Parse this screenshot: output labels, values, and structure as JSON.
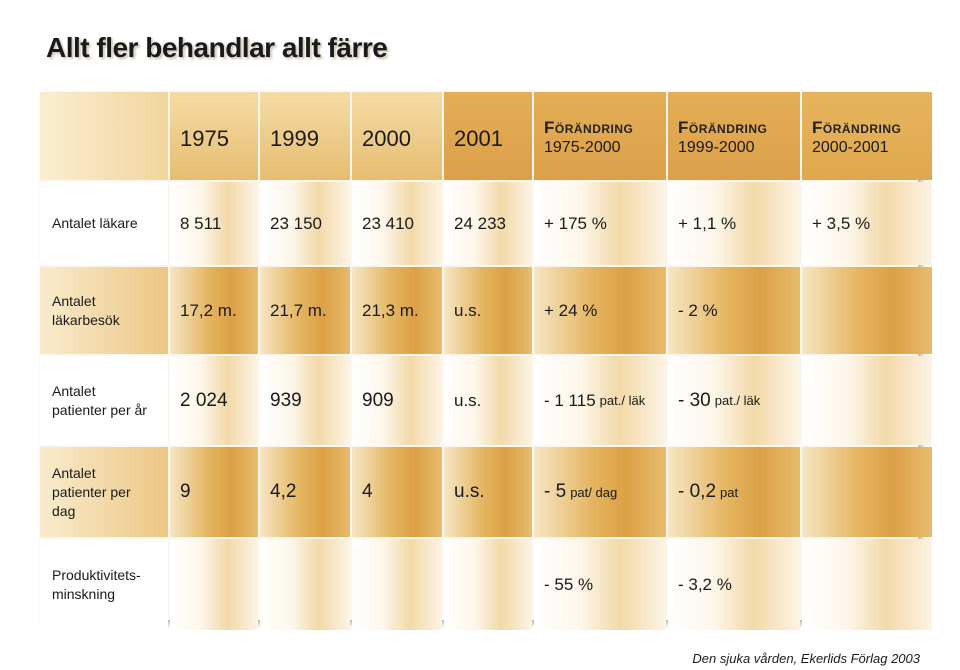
{
  "title": "Allt fler behandlar allt färre",
  "table": {
    "headers": {
      "years": [
        "1975",
        "1999",
        "2000",
        "2001"
      ],
      "changes": [
        {
          "label": "Förändring",
          "range": "1975-2000"
        },
        {
          "label": "Förändring",
          "range": "1999-2000"
        },
        {
          "label": "Förändring",
          "range": "2000-2001"
        }
      ]
    },
    "rows": [
      {
        "label_line1": "Antalet läkare",
        "label_line2": "",
        "label_line3": "",
        "values": [
          "8 511",
          "23 150",
          "23 410",
          "24 233"
        ],
        "changes": [
          {
            "v": "+ 175 %",
            "u": ""
          },
          {
            "v": "+ 1,1 %",
            "u": ""
          },
          {
            "v": "+ 3,5 %",
            "u": ""
          }
        ]
      },
      {
        "label_line1": "Antalet",
        "label_line2": "läkarbesök",
        "label_line3": "",
        "values": [
          "17,2 m.",
          "21,7 m.",
          "21,3 m.",
          "u.s."
        ],
        "changes": [
          {
            "v": "+ 24 %",
            "u": ""
          },
          {
            "v": "- 2 %",
            "u": ""
          },
          {
            "v": "",
            "u": ""
          }
        ]
      },
      {
        "label_line1": "Antalet",
        "label_line2": "patienter per år",
        "label_line3": "",
        "values": [
          "2 024",
          "939",
          "909",
          "u.s."
        ],
        "changes": [
          {
            "v": "- 1 115",
            "u": "pat./ läk"
          },
          {
            "v": "- 30",
            "u": "pat./ läk"
          },
          {
            "v": "",
            "u": ""
          }
        ]
      },
      {
        "label_line1": "Antalet",
        "label_line2": "patienter per",
        "label_line3": "dag",
        "values": [
          "9",
          "4,2",
          "4",
          "u.s."
        ],
        "changes": [
          {
            "v": "- 5",
            "u": "pat/ dag"
          },
          {
            "v": "- 0,2",
            "u": "pat"
          },
          {
            "v": "",
            "u": ""
          }
        ]
      },
      {
        "label_line1": "Produktivitets-",
        "label_line2": "minskning",
        "label_line3": "",
        "values": [
          "",
          "",
          "",
          ""
        ],
        "changes": [
          {
            "v": "- 55 %",
            "u": ""
          },
          {
            "v": "- 3,2 %",
            "u": ""
          },
          {
            "v": "",
            "u": ""
          }
        ]
      }
    ]
  },
  "source": "Den sjuka vården, Ekerlids Förlag 2003"
}
